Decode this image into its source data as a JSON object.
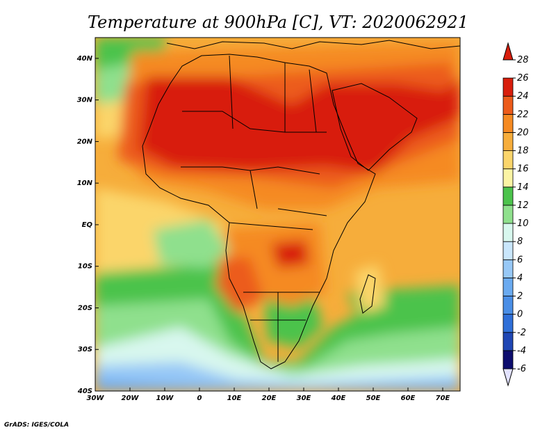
{
  "title": "Temperature at 900hPa [C], VT: 2020062921",
  "credit": "GrADS: IGES/COLA",
  "map": {
    "lon_range": [
      -30,
      75
    ],
    "lat_range": [
      -40,
      45
    ],
    "lon_ticks": [
      {
        "value": -30,
        "label": "30W"
      },
      {
        "value": -20,
        "label": "20W"
      },
      {
        "value": -10,
        "label": "10W"
      },
      {
        "value": 0,
        "label": "0"
      },
      {
        "value": 10,
        "label": "10E"
      },
      {
        "value": 20,
        "label": "20E"
      },
      {
        "value": 30,
        "label": "30E"
      },
      {
        "value": 40,
        "label": "40E"
      },
      {
        "value": 50,
        "label": "50E"
      },
      {
        "value": 60,
        "label": "60E"
      },
      {
        "value": 70,
        "label": "70E"
      }
    ],
    "lat_ticks": [
      {
        "value": 40,
        "label": "40N"
      },
      {
        "value": 30,
        "label": "30N"
      },
      {
        "value": 20,
        "label": "20N"
      },
      {
        "value": 10,
        "label": "10N"
      },
      {
        "value": 0,
        "label": "EQ"
      },
      {
        "value": -10,
        "label": "10S"
      },
      {
        "value": -20,
        "label": "20S"
      },
      {
        "value": -30,
        "label": "30S"
      },
      {
        "value": -40,
        "label": "40S"
      }
    ]
  },
  "colorbar": {
    "levels": [
      -6,
      -4,
      -2,
      0,
      2,
      4,
      6,
      8,
      10,
      12,
      14,
      16,
      18,
      20,
      22,
      24,
      26,
      28
    ],
    "labels": [
      "-6",
      "-4",
      "-2",
      "0",
      "2",
      "4",
      "6",
      "8",
      "10",
      "12",
      "14",
      "16",
      "18",
      "20",
      "22",
      "24",
      "26",
      "28"
    ],
    "colors": [
      "#0d0d6e",
      "#1f46b4",
      "#2f6fd8",
      "#4a8ee6",
      "#6aaaf0",
      "#97c8f6",
      "#c9e6fb",
      "#d8f7ee",
      "#8fe08d",
      "#4cc34c",
      "#fbf4a4",
      "#fbd56b",
      "#f6ad3b",
      "#f58a22",
      "#ec5b1a",
      "#d81e0c"
    ],
    "below_color": "#e2e2ff",
    "above_color": "#d81e0c"
  }
}
